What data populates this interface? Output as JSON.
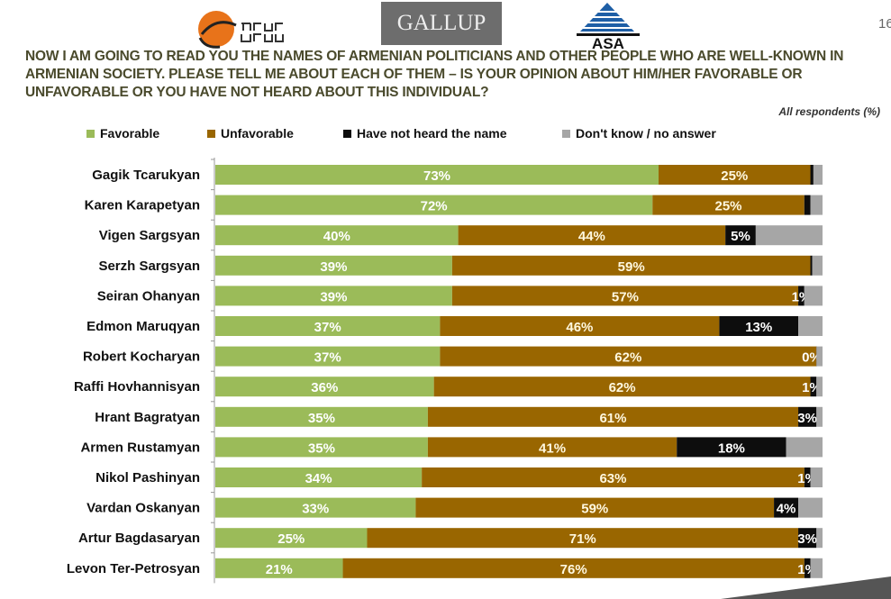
{
  "header": {
    "logos": [
      "ЕРКИР ЦЕНТР",
      "GALLUP",
      "ASA"
    ],
    "page_number": "16",
    "title": "NOW I AM GOING TO READ YOU THE NAMES OF ARMENIAN POLITICIANS AND OTHER PEOPLE WHO ARE WELL-KNOWN IN ARMENIAN SOCIETY. PLEASE TELL ME ABOUT EACH OF THEM – IS YOUR OPINION ABOUT HIM/HER FAVORABLE OR UNFAVORABLE OR YOU HAVE NOT HEARD ABOUT THIS INDIVIDUAL?",
    "subtitle": "All respondents (%)"
  },
  "chart_data": {
    "type": "bar",
    "orientation": "horizontal",
    "stacked": true,
    "xlim": [
      0,
      100
    ],
    "grid": false,
    "legend_position": "top",
    "categories": [
      "Gagik Tcarukyan",
      "Karen Karapetyan",
      "Vigen Sargsyan",
      "Serzh Sargsyan",
      "Seiran Ohanyan",
      "Edmon Maruqyan",
      "Robert Kocharyan",
      "Raffi Hovhannisyan",
      "Hrant Bagratyan",
      "Armen Rustamyan",
      "Nikol Pashinyan",
      "Vardan Oskanyan",
      "Artur Bagdasaryan",
      "Levon Ter-Petrosyan"
    ],
    "series": [
      {
        "name": "Favorable",
        "color": "#9bbb59",
        "label_color": "#ffffff",
        "values": [
          73,
          72,
          40,
          39,
          39,
          37,
          37,
          36,
          35,
          35,
          34,
          33,
          25,
          21
        ],
        "labels": [
          "73%",
          "72%",
          "40%",
          "39%",
          "39%",
          "37%",
          "37%",
          "36%",
          "35%",
          "35%",
          "34%",
          "33%",
          "25%",
          "21%"
        ]
      },
      {
        "name": "Unfavorable",
        "color": "#996600",
        "label_color": "#fff8e0",
        "values": [
          25,
          25,
          44,
          59,
          57,
          46,
          62,
          62,
          61,
          41,
          63,
          59,
          71,
          76
        ],
        "labels": [
          "25%",
          "25%",
          "44%",
          "59%",
          "57%",
          "46%",
          "62%",
          "62%",
          "61%",
          "41%",
          "63%",
          "59%",
          "71%",
          "76%"
        ]
      },
      {
        "name": "Have not heard the name",
        "color": "#0d0d0d",
        "label_color": "#ffffff",
        "values": [
          0.5,
          1,
          5,
          0.3,
          1,
          13,
          0,
          1,
          3,
          18,
          1,
          4,
          3,
          1
        ],
        "labels": [
          null,
          null,
          "5%",
          null,
          "1%",
          "13%",
          "0%",
          "1%",
          "3%",
          "18%",
          "1%",
          "4%",
          "3%",
          "1%"
        ]
      },
      {
        "name": "Don't know / no answer",
        "color": "#a6a6a6",
        "label_color": "#ffffff",
        "values": [
          1.5,
          2,
          11,
          1.7,
          3,
          4,
          1,
          1,
          1,
          6,
          2,
          4,
          1,
          2
        ],
        "labels": [
          null,
          null,
          null,
          null,
          null,
          null,
          null,
          null,
          null,
          null,
          null,
          null,
          null,
          null
        ]
      }
    ]
  }
}
